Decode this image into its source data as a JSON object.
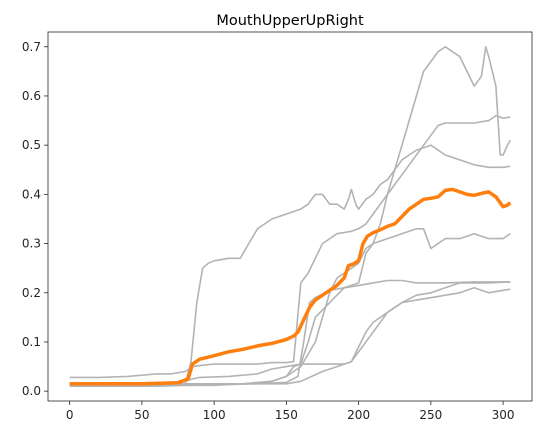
{
  "chart_data": {
    "type": "line",
    "title": "MouthUpperUpRight",
    "xlabel": "",
    "ylabel": "",
    "xlim": [
      -15,
      320
    ],
    "ylim": [
      -0.02,
      0.73
    ],
    "xticks": [
      0,
      50,
      100,
      150,
      200,
      250,
      300
    ],
    "yticks": [
      0.0,
      0.1,
      0.2,
      0.3,
      0.4,
      0.5,
      0.6,
      0.7
    ],
    "grid": false,
    "legend": "none",
    "colors": {
      "gray": "#b3b3b3",
      "highlight": "#ff7f0e",
      "axis": "#262626"
    },
    "series": [
      {
        "style": "gray",
        "points": [
          [
            0,
            0.015
          ],
          [
            60,
            0.015
          ],
          [
            80,
            0.02
          ],
          [
            85,
            0.025
          ],
          [
            90,
            0.028
          ],
          [
            110,
            0.03
          ],
          [
            130,
            0.035
          ],
          [
            140,
            0.045
          ],
          [
            150,
            0.05
          ],
          [
            160,
            0.055
          ],
          [
            180,
            0.055
          ],
          [
            190,
            0.055
          ],
          [
            195,
            0.06
          ],
          [
            200,
            0.09
          ],
          [
            205,
            0.12
          ],
          [
            210,
            0.14
          ],
          [
            220,
            0.16
          ],
          [
            230,
            0.18
          ],
          [
            240,
            0.185
          ],
          [
            250,
            0.19
          ],
          [
            260,
            0.195
          ],
          [
            270,
            0.2
          ],
          [
            280,
            0.21
          ],
          [
            290,
            0.2
          ],
          [
            300,
            0.205
          ],
          [
            305,
            0.207
          ]
        ]
      },
      {
        "style": "gray",
        "points": [
          [
            0,
            0.012
          ],
          [
            60,
            0.012
          ],
          [
            80,
            0.015
          ],
          [
            100,
            0.015
          ],
          [
            130,
            0.015
          ],
          [
            150,
            0.015
          ],
          [
            160,
            0.02
          ],
          [
            175,
            0.04
          ],
          [
            185,
            0.05
          ],
          [
            195,
            0.06
          ],
          [
            200,
            0.08
          ],
          [
            210,
            0.12
          ],
          [
            220,
            0.16
          ],
          [
            230,
            0.18
          ],
          [
            240,
            0.195
          ],
          [
            250,
            0.2
          ],
          [
            260,
            0.21
          ],
          [
            270,
            0.22
          ],
          [
            280,
            0.22
          ],
          [
            290,
            0.22
          ],
          [
            305,
            0.222
          ]
        ]
      },
      {
        "style": "gray",
        "points": [
          [
            0,
            0.013
          ],
          [
            60,
            0.013
          ],
          [
            80,
            0.015
          ],
          [
            100,
            0.013
          ],
          [
            130,
            0.015
          ],
          [
            150,
            0.018
          ],
          [
            158,
            0.03
          ],
          [
            162,
            0.1
          ],
          [
            166,
            0.18
          ],
          [
            170,
            0.19
          ],
          [
            180,
            0.205
          ],
          [
            190,
            0.21
          ],
          [
            200,
            0.215
          ],
          [
            210,
            0.22
          ],
          [
            220,
            0.225
          ],
          [
            230,
            0.225
          ],
          [
            240,
            0.22
          ],
          [
            250,
            0.22
          ],
          [
            260,
            0.22
          ],
          [
            280,
            0.222
          ],
          [
            300,
            0.222
          ],
          [
            305,
            0.222
          ]
        ]
      },
      {
        "style": "gray",
        "points": [
          [
            0,
            0.01
          ],
          [
            60,
            0.01
          ],
          [
            80,
            0.012
          ],
          [
            100,
            0.012
          ],
          [
            120,
            0.015
          ],
          [
            140,
            0.02
          ],
          [
            150,
            0.03
          ],
          [
            155,
            0.05
          ],
          [
            160,
            0.055
          ],
          [
            165,
            0.1
          ],
          [
            170,
            0.15
          ],
          [
            180,
            0.18
          ],
          [
            190,
            0.21
          ],
          [
            195,
            0.215
          ],
          [
            200,
            0.22
          ],
          [
            205,
            0.28
          ],
          [
            210,
            0.3
          ],
          [
            215,
            0.34
          ],
          [
            220,
            0.4
          ],
          [
            230,
            0.44
          ],
          [
            240,
            0.48
          ],
          [
            245,
            0.5
          ],
          [
            250,
            0.52
          ],
          [
            255,
            0.54
          ],
          [
            260,
            0.545
          ],
          [
            270,
            0.545
          ],
          [
            280,
            0.545
          ],
          [
            290,
            0.55
          ],
          [
            295,
            0.56
          ],
          [
            300,
            0.555
          ],
          [
            305,
            0.557
          ]
        ]
      },
      {
        "style": "gray",
        "points": [
          [
            0,
            0.012
          ],
          [
            60,
            0.012
          ],
          [
            80,
            0.012
          ],
          [
            100,
            0.013
          ],
          [
            120,
            0.015
          ],
          [
            140,
            0.02
          ],
          [
            150,
            0.03
          ],
          [
            160,
            0.05
          ],
          [
            170,
            0.1
          ],
          [
            180,
            0.2
          ],
          [
            185,
            0.23
          ],
          [
            190,
            0.24
          ],
          [
            195,
            0.25
          ],
          [
            200,
            0.26
          ],
          [
            205,
            0.29
          ],
          [
            210,
            0.3
          ],
          [
            220,
            0.31
          ],
          [
            230,
            0.32
          ],
          [
            240,
            0.33
          ],
          [
            245,
            0.33
          ],
          [
            250,
            0.29
          ],
          [
            255,
            0.3
          ],
          [
            260,
            0.31
          ],
          [
            270,
            0.31
          ],
          [
            280,
            0.32
          ],
          [
            290,
            0.31
          ],
          [
            300,
            0.31
          ],
          [
            305,
            0.32
          ]
        ]
      },
      {
        "style": "gray",
        "points": [
          [
            0,
            0.028
          ],
          [
            20,
            0.028
          ],
          [
            40,
            0.03
          ],
          [
            60,
            0.035
          ],
          [
            70,
            0.035
          ],
          [
            80,
            0.04
          ],
          [
            85,
            0.05
          ],
          [
            90,
            0.052
          ],
          [
            100,
            0.055
          ],
          [
            110,
            0.055
          ],
          [
            120,
            0.055
          ],
          [
            130,
            0.055
          ],
          [
            140,
            0.058
          ],
          [
            150,
            0.058
          ],
          [
            155,
            0.06
          ],
          [
            160,
            0.22
          ],
          [
            165,
            0.24
          ],
          [
            170,
            0.27
          ],
          [
            175,
            0.3
          ],
          [
            185,
            0.32
          ],
          [
            195,
            0.325
          ],
          [
            200,
            0.33
          ],
          [
            205,
            0.34
          ],
          [
            210,
            0.36
          ],
          [
            220,
            0.4
          ],
          [
            225,
            0.45
          ],
          [
            230,
            0.47
          ],
          [
            240,
            0.49
          ],
          [
            250,
            0.5
          ],
          [
            260,
            0.48
          ],
          [
            270,
            0.47
          ],
          [
            280,
            0.46
          ],
          [
            290,
            0.455
          ],
          [
            300,
            0.455
          ],
          [
            305,
            0.457
          ]
        ]
      },
      {
        "style": "gray",
        "points": [
          [
            0,
            0.01
          ],
          [
            50,
            0.01
          ],
          [
            75,
            0.012
          ],
          [
            80,
            0.015
          ],
          [
            84,
            0.06
          ],
          [
            88,
            0.18
          ],
          [
            92,
            0.25
          ],
          [
            96,
            0.26
          ],
          [
            100,
            0.265
          ],
          [
            110,
            0.27
          ],
          [
            118,
            0.27
          ],
          [
            122,
            0.29
          ],
          [
            126,
            0.31
          ],
          [
            130,
            0.33
          ],
          [
            135,
            0.34
          ],
          [
            140,
            0.35
          ],
          [
            150,
            0.36
          ],
          [
            160,
            0.37
          ],
          [
            165,
            0.38
          ],
          [
            170,
            0.4
          ],
          [
            175,
            0.4
          ],
          [
            180,
            0.38
          ],
          [
            185,
            0.38
          ],
          [
            190,
            0.37
          ],
          [
            193,
            0.39
          ],
          [
            195,
            0.41
          ],
          [
            198,
            0.38
          ],
          [
            200,
            0.37
          ],
          [
            205,
            0.39
          ],
          [
            210,
            0.4
          ],
          [
            215,
            0.42
          ],
          [
            220,
            0.43
          ],
          [
            225,
            0.45
          ],
          [
            230,
            0.5
          ],
          [
            235,
            0.55
          ],
          [
            240,
            0.6
          ],
          [
            245,
            0.65
          ],
          [
            250,
            0.67
          ],
          [
            255,
            0.69
          ],
          [
            260,
            0.7
          ],
          [
            265,
            0.69
          ],
          [
            270,
            0.68
          ],
          [
            275,
            0.65
          ],
          [
            280,
            0.62
          ],
          [
            285,
            0.64
          ],
          [
            288,
            0.7
          ],
          [
            290,
            0.68
          ],
          [
            295,
            0.62
          ],
          [
            298,
            0.48
          ],
          [
            300,
            0.48
          ],
          [
            303,
            0.5
          ],
          [
            305,
            0.51
          ]
        ]
      },
      {
        "style": "highlight",
        "points": [
          [
            0,
            0.015
          ],
          [
            50,
            0.015
          ],
          [
            75,
            0.017
          ],
          [
            82,
            0.025
          ],
          [
            85,
            0.055
          ],
          [
            90,
            0.065
          ],
          [
            100,
            0.072
          ],
          [
            110,
            0.08
          ],
          [
            120,
            0.085
          ],
          [
            130,
            0.092
          ],
          [
            140,
            0.097
          ],
          [
            150,
            0.105
          ],
          [
            155,
            0.112
          ],
          [
            158,
            0.12
          ],
          [
            162,
            0.145
          ],
          [
            166,
            0.17
          ],
          [
            170,
            0.185
          ],
          [
            175,
            0.195
          ],
          [
            180,
            0.205
          ],
          [
            185,
            0.215
          ],
          [
            190,
            0.23
          ],
          [
            193,
            0.255
          ],
          [
            196,
            0.258
          ],
          [
            200,
            0.265
          ],
          [
            203,
            0.3
          ],
          [
            206,
            0.315
          ],
          [
            210,
            0.322
          ],
          [
            215,
            0.328
          ],
          [
            220,
            0.335
          ],
          [
            225,
            0.34
          ],
          [
            230,
            0.355
          ],
          [
            235,
            0.37
          ],
          [
            240,
            0.38
          ],
          [
            245,
            0.39
          ],
          [
            250,
            0.392
          ],
          [
            255,
            0.395
          ],
          [
            260,
            0.408
          ],
          [
            265,
            0.41
          ],
          [
            270,
            0.405
          ],
          [
            275,
            0.4
          ],
          [
            280,
            0.398
          ],
          [
            285,
            0.402
          ],
          [
            290,
            0.405
          ],
          [
            295,
            0.395
          ],
          [
            300,
            0.375
          ],
          [
            303,
            0.378
          ],
          [
            305,
            0.383
          ]
        ]
      }
    ]
  }
}
